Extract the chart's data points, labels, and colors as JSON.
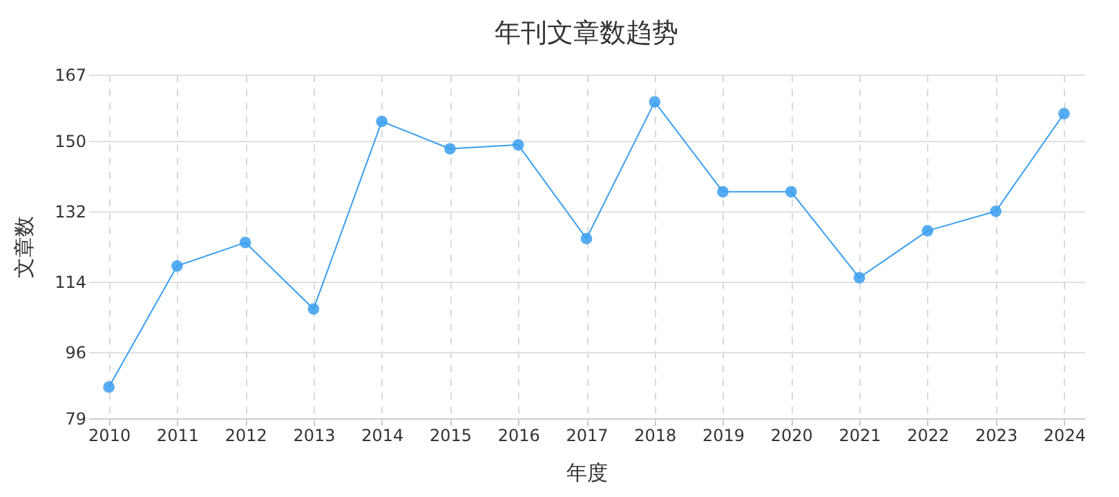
{
  "chart_data": {
    "type": "line",
    "title": "年刊文章数趋势",
    "xlabel": "年度",
    "ylabel": "文章数",
    "categories": [
      "2010",
      "2011",
      "2012",
      "2013",
      "2014",
      "2015",
      "2016",
      "2017",
      "2018",
      "2019",
      "2020",
      "2021",
      "2022",
      "2023",
      "2024"
    ],
    "series": [
      {
        "color": "#3a9ff0",
        "values": [
          87,
          118,
          124,
          107,
          155,
          148,
          149,
          125,
          160,
          137,
          137,
          115,
          127,
          132,
          157
        ]
      }
    ],
    "ylim": [
      79,
      167
    ],
    "yticks": [
      79,
      96,
      114,
      132,
      150,
      167
    ],
    "grid": true,
    "marker": "circle",
    "line_style": "solid"
  }
}
